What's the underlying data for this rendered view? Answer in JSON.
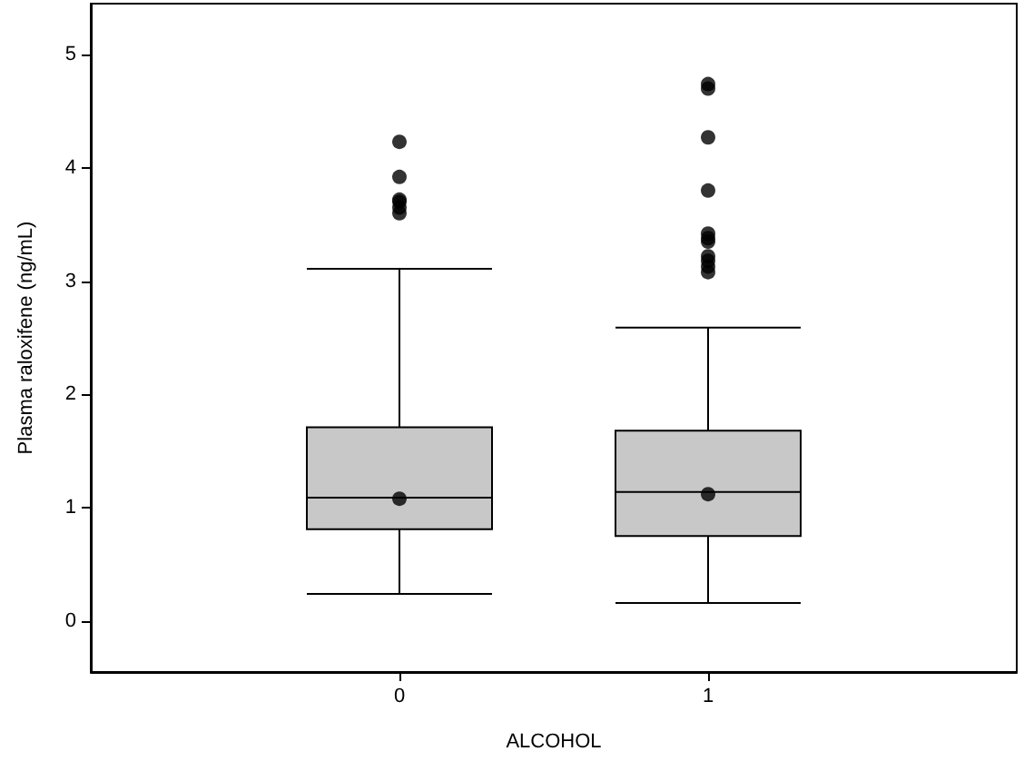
{
  "chart_data": {
    "type": "box",
    "xlabel": "ALCOHOL",
    "ylabel": "Plasma raloxifene (ng/mL)",
    "categories": [
      "0",
      "1"
    ],
    "color": "#c8c8c8",
    "ylim": [
      -0.45,
      5.45
    ],
    "yticks": [
      0,
      1,
      2,
      3,
      4,
      5
    ],
    "grid": false,
    "legend": false,
    "boxes": [
      {
        "low": 0.24,
        "q1": 0.81,
        "median": 1.09,
        "q3": 1.71,
        "high": 3.11,
        "mean": 1.08,
        "outliers": [
          3.6,
          3.65,
          3.7,
          3.72,
          3.92,
          4.23
        ]
      },
      {
        "low": 0.16,
        "q1": 0.75,
        "median": 1.14,
        "q3": 1.68,
        "high": 2.59,
        "mean": 1.12,
        "outliers": [
          3.08,
          3.13,
          3.18,
          3.22,
          3.35,
          3.38,
          3.42,
          3.8,
          4.27,
          4.7,
          4.74
        ]
      }
    ]
  }
}
